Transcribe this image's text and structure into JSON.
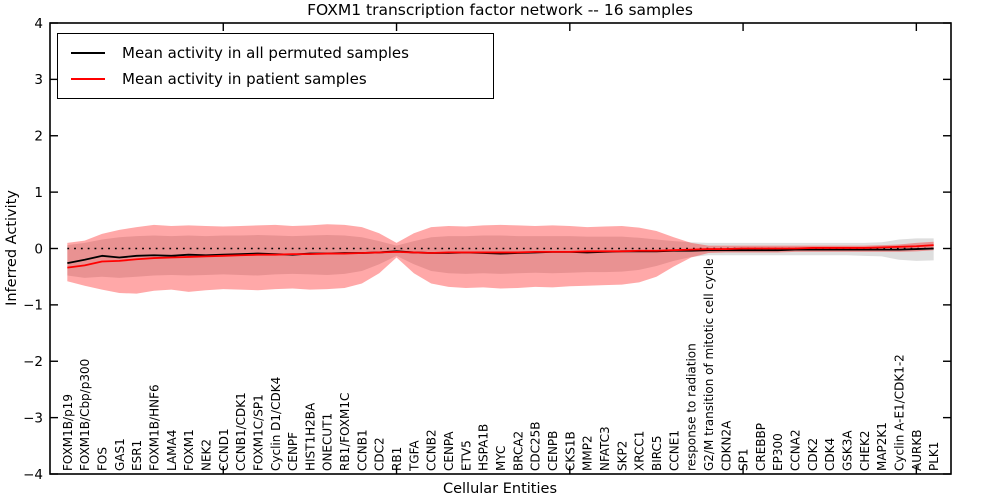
{
  "chart": {
    "title": "FOXM1 transcription factor network -- 16 samples",
    "ylabel": "Inferred Activity",
    "xlabel": "Cellular Entities"
  },
  "legend": {
    "items": [
      {
        "label": "Mean activity in all permuted samples",
        "color": "#000000"
      },
      {
        "label": "Mean activity in patient samples",
        "color": "#ff0000"
      }
    ]
  },
  "chart_data": {
    "type": "line",
    "title": "FOXM1 transcription factor network -- 16 samples",
    "xlabel": "Cellular Entities",
    "ylabel": "Inferred Activity",
    "ylim": [
      -4,
      4
    ],
    "yticks": [
      -4,
      -3,
      -2,
      -1,
      0,
      1,
      2,
      3,
      4
    ],
    "xticks": [
      10,
      20,
      30,
      40,
      50
    ],
    "x_axis_span": 52,
    "grid": false,
    "legend_position": "upper left",
    "zero_reference_line": 0,
    "categories": [
      "FOXM1B/p19",
      "FOXM1B/Cbp/p300",
      "FOS",
      "GAS1",
      "ESR1",
      "FOXM1B/HNF6",
      "LAMA4",
      "FOXM1",
      "NEK2",
      "CCND1",
      "CCNB1/CDK1",
      "FOXM1C/SP1",
      "Cyclin D1/CDK4",
      "CENPF",
      "HIST1H2BA",
      "ONECUT1",
      "RB1/FOXM1C",
      "CCNB1",
      "CDC2",
      "RB1",
      "TGFA",
      "CCNB2",
      "CENPA",
      "ETV5",
      "HSPA1B",
      "MYC",
      "BRCA2",
      "CDC25B",
      "CENPB",
      "CKS1B",
      "MMP2",
      "NFATC3",
      "SKP2",
      "XRCC1",
      "BIRC5",
      "CCNE1",
      "response to radiation",
      "G2/M transition of mitotic cell cycle",
      "CDKN2A",
      "SP1",
      "CREBBP",
      "EP300",
      "CCNA2",
      "CDK2",
      "CDK4",
      "GSK3A",
      "CHEK2",
      "MAP2K1",
      "Cyclin A-E1/CDK1-2",
      "AURKB",
      "PLK1"
    ],
    "series": [
      {
        "name": "Mean activity in all permuted samples",
        "color": "#000000",
        "band_color": "rgba(0,0,0,0.13)",
        "values": [
          -0.26,
          -0.2,
          -0.13,
          -0.16,
          -0.13,
          -0.12,
          -0.13,
          -0.11,
          -0.12,
          -0.11,
          -0.1,
          -0.09,
          -0.1,
          -0.11,
          -0.09,
          -0.09,
          -0.08,
          -0.08,
          -0.07,
          -0.05,
          -0.07,
          -0.08,
          -0.08,
          -0.07,
          -0.08,
          -0.09,
          -0.08,
          -0.07,
          -0.06,
          -0.06,
          -0.07,
          -0.06,
          -0.05,
          -0.05,
          -0.05,
          -0.04,
          -0.04,
          -0.03,
          -0.03,
          -0.03,
          -0.03,
          -0.03,
          -0.02,
          -0.02,
          -0.02,
          -0.02,
          -0.02,
          -0.02,
          -0.02,
          -0.01,
          0.0
        ],
        "band_upper": [
          0.06,
          0.1,
          0.16,
          0.2,
          0.22,
          0.23,
          0.22,
          0.23,
          0.22,
          0.23,
          0.23,
          0.24,
          0.23,
          0.22,
          0.23,
          0.24,
          0.23,
          0.2,
          0.13,
          0.05,
          0.13,
          0.2,
          0.22,
          0.22,
          0.23,
          0.23,
          0.22,
          0.22,
          0.22,
          0.22,
          0.21,
          0.21,
          0.21,
          0.19,
          0.16,
          0.13,
          0.11,
          0.1,
          0.1,
          0.1,
          0.1,
          0.1,
          0.1,
          0.1,
          0.1,
          0.1,
          0.1,
          0.11,
          0.16,
          0.18,
          0.18
        ],
        "band_lower": [
          -0.48,
          -0.52,
          -0.5,
          -0.52,
          -0.5,
          -0.48,
          -0.47,
          -0.48,
          -0.47,
          -0.46,
          -0.47,
          -0.48,
          -0.46,
          -0.45,
          -0.46,
          -0.47,
          -0.45,
          -0.4,
          -0.28,
          -0.13,
          -0.28,
          -0.4,
          -0.44,
          -0.45,
          -0.44,
          -0.45,
          -0.44,
          -0.43,
          -0.44,
          -0.43,
          -0.42,
          -0.42,
          -0.41,
          -0.38,
          -0.31,
          -0.22,
          -0.15,
          -0.12,
          -0.12,
          -0.12,
          -0.12,
          -0.12,
          -0.12,
          -0.12,
          -0.12,
          -0.12,
          -0.13,
          -0.14,
          -0.2,
          -0.22,
          -0.21
        ]
      },
      {
        "name": "Mean activity in patient samples",
        "color": "#ff0000",
        "band_color": "rgba(255,0,0,0.34)",
        "values": [
          -0.34,
          -0.3,
          -0.23,
          -0.22,
          -0.19,
          -0.17,
          -0.16,
          -0.15,
          -0.14,
          -0.13,
          -0.12,
          -0.11,
          -0.11,
          -0.1,
          -0.1,
          -0.09,
          -0.09,
          -0.08,
          -0.07,
          -0.06,
          -0.07,
          -0.08,
          -0.07,
          -0.07,
          -0.07,
          -0.07,
          -0.07,
          -0.06,
          -0.06,
          -0.06,
          -0.05,
          -0.05,
          -0.05,
          -0.04,
          -0.04,
          -0.03,
          -0.02,
          -0.01,
          -0.01,
          0.0,
          0.0,
          0.0,
          0.0,
          0.01,
          0.01,
          0.01,
          0.01,
          0.02,
          0.03,
          0.04,
          0.06
        ],
        "band_upper": [
          0.1,
          0.14,
          0.26,
          0.33,
          0.38,
          0.42,
          0.4,
          0.41,
          0.4,
          0.39,
          0.4,
          0.41,
          0.42,
          0.4,
          0.41,
          0.43,
          0.42,
          0.38,
          0.27,
          0.1,
          0.27,
          0.38,
          0.4,
          0.39,
          0.41,
          0.42,
          0.41,
          0.4,
          0.41,
          0.4,
          0.38,
          0.39,
          0.4,
          0.37,
          0.31,
          0.2,
          0.1,
          0.05,
          0.05,
          0.05,
          0.05,
          0.05,
          0.05,
          0.05,
          0.05,
          0.05,
          0.05,
          0.06,
          0.07,
          0.1,
          0.12
        ],
        "band_lower": [
          -0.58,
          -0.66,
          -0.73,
          -0.79,
          -0.8,
          -0.75,
          -0.73,
          -0.77,
          -0.74,
          -0.72,
          -0.73,
          -0.74,
          -0.72,
          -0.71,
          -0.73,
          -0.72,
          -0.7,
          -0.62,
          -0.44,
          -0.16,
          -0.44,
          -0.62,
          -0.68,
          -0.7,
          -0.69,
          -0.71,
          -0.7,
          -0.68,
          -0.69,
          -0.67,
          -0.66,
          -0.65,
          -0.64,
          -0.6,
          -0.5,
          -0.32,
          -0.16,
          -0.08,
          -0.07,
          -0.07,
          -0.07,
          -0.07,
          -0.06,
          -0.06,
          -0.06,
          -0.06,
          -0.06,
          -0.06,
          -0.06,
          -0.05,
          -0.03
        ]
      }
    ]
  },
  "style": {
    "background": "#ffffff",
    "frame_color": "#000000",
    "zero_line_color": "#000000"
  }
}
